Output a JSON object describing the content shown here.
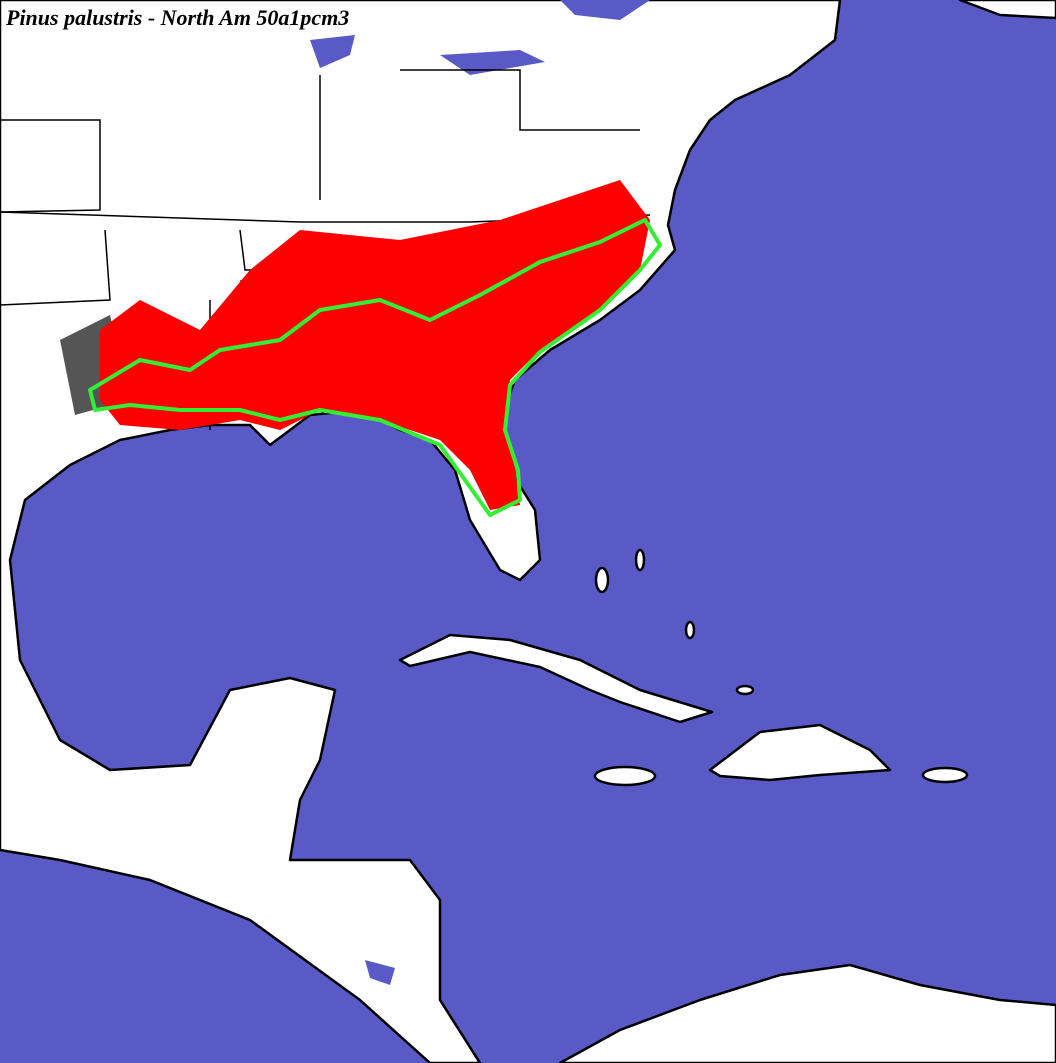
{
  "title": "Pinus palustris - North Am 50a1pcm3"
}
